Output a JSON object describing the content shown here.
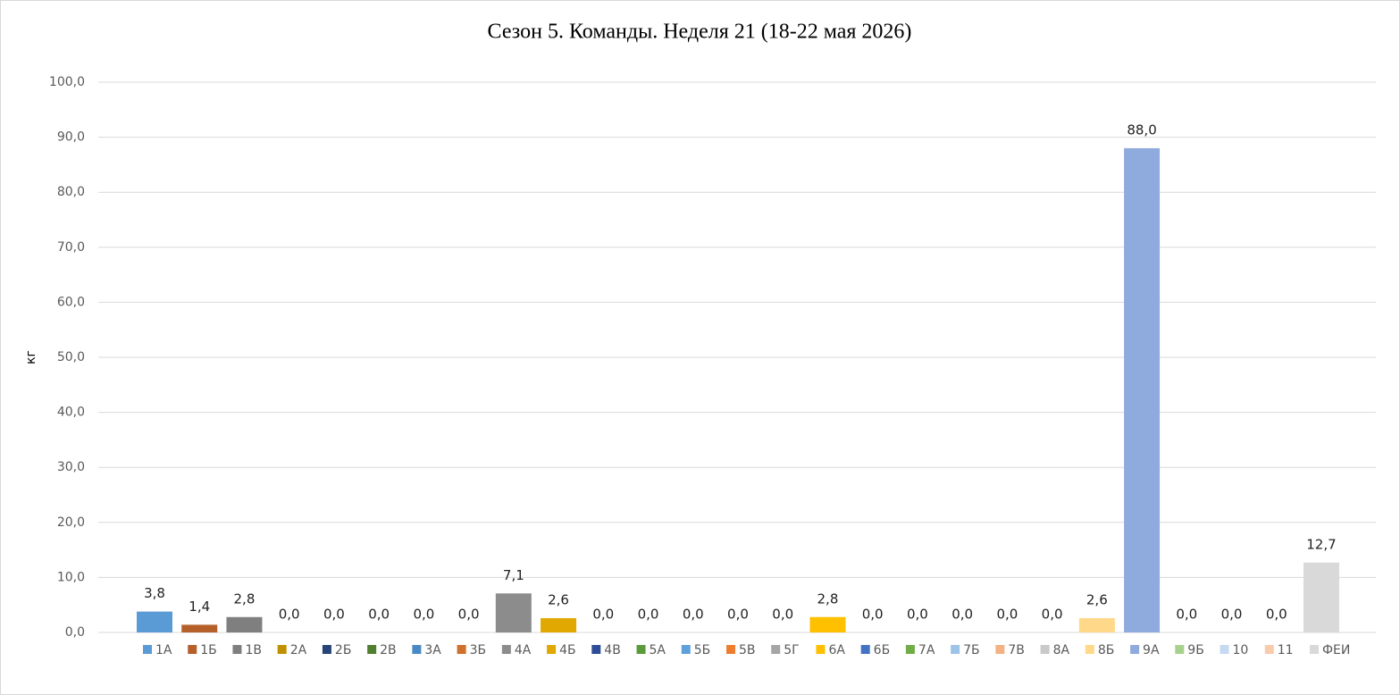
{
  "chart_data": {
    "type": "bar",
    "title": "Сезон 5. Команды. Неделя 21 (18-22 мая 2026)",
    "y_label": "кг",
    "categories": [
      "1А",
      "1Б",
      "1В",
      "2А",
      "2Б",
      "2В",
      "3А",
      "3Б",
      "4А",
      "4Б",
      "4В",
      "5А",
      "5Б",
      "5В",
      "5Г",
      "6А",
      "6Б",
      "7А",
      "7Б",
      "7В",
      "8А",
      "8Б",
      "9А",
      "9Б",
      "10",
      "11",
      "ФЕИ"
    ],
    "values": [
      3.8,
      1.4,
      2.8,
      0,
      0,
      0,
      0,
      0,
      7.1,
      2.6,
      0,
      0,
      0,
      0,
      0,
      2.8,
      0,
      0,
      0,
      0,
      0,
      2.6,
      88,
      0,
      0,
      0,
      12.7
    ],
    "value_labels": [
      "3,8",
      "1,4",
      "2,8",
      "0,0",
      "0,0",
      "0,0",
      "0,0",
      "0,0",
      "7,1",
      "2,6",
      "0,0",
      "0,0",
      "0,0",
      "0,0",
      "0,0",
      "2,8",
      "0,0",
      "0,0",
      "0,0",
      "0,0",
      "0,0",
      "2,6",
      "88,0",
      "0,0",
      "0,0",
      "0,0",
      "12,7"
    ],
    "colors": [
      "#5b9bd5",
      "#b5602a",
      "#7f7f7f",
      "#bf9000",
      "#264478",
      "#4f7f2f",
      "#4a8ac4",
      "#d0702d",
      "#8c8c8c",
      "#e0a800",
      "#2e4d96",
      "#5a9b3c",
      "#5f9fdc",
      "#ed7d31",
      "#a5a5a5",
      "#ffc000",
      "#4472c4",
      "#70ad47",
      "#9dc3e6",
      "#f4b183",
      "#c9c9c9",
      "#ffd88a",
      "#8faadc",
      "#a9d18e",
      "#c5d9f1",
      "#f8cbad",
      "#d9d9d9"
    ],
    "ylim": [
      0,
      100
    ],
    "yticks": [
      {
        "value": 0,
        "label": "0,0"
      },
      {
        "value": 10,
        "label": "10,0"
      },
      {
        "value": 20,
        "label": "20,0"
      },
      {
        "value": 30,
        "label": "30,0"
      },
      {
        "value": 40,
        "label": "40,0"
      },
      {
        "value": 50,
        "label": "50,0"
      },
      {
        "value": 60,
        "label": "60,0"
      },
      {
        "value": 70,
        "label": "70,0"
      },
      {
        "value": 80,
        "label": "80,0"
      },
      {
        "value": 90,
        "label": "90,0"
      },
      {
        "value": 100,
        "label": "100,0"
      }
    ],
    "grid": true,
    "legend": "bottom"
  }
}
